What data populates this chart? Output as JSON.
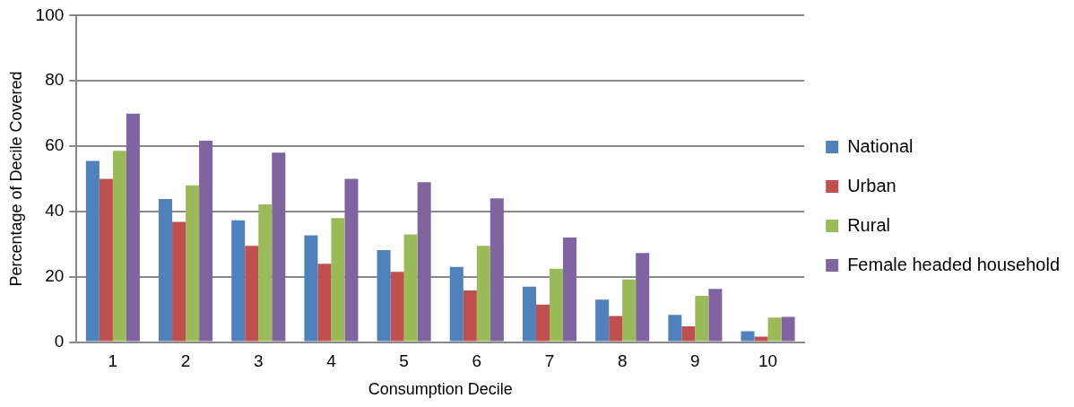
{
  "chart_data": {
    "type": "bar",
    "xlabel": "Consumption Decile",
    "ylabel": "Percentage of Decile Covered",
    "categories": [
      "1",
      "2",
      "3",
      "4",
      "5",
      "6",
      "7",
      "8",
      "9",
      "10"
    ],
    "series": [
      {
        "name": "National",
        "color": "#4f81bd",
        "values": [
          55.5,
          43.8,
          37.3,
          32.7,
          28.2,
          23,
          17,
          13,
          8.3,
          3.3
        ]
      },
      {
        "name": "Urban",
        "color": "#c0504d",
        "values": [
          50,
          36.8,
          29.5,
          24,
          21.5,
          15.8,
          11.5,
          8,
          4.8,
          1.7
        ]
      },
      {
        "name": "Rural",
        "color": "#9bbb59",
        "values": [
          58.6,
          48,
          42.2,
          38,
          33,
          29.5,
          22.5,
          19.2,
          14.2,
          7.5
        ]
      },
      {
        "name": "Female headed household",
        "color": "#8064a2",
        "values": [
          70,
          61.7,
          58,
          50,
          49,
          44,
          32,
          27.3,
          16.3,
          7.7
        ]
      }
    ],
    "ylim": [
      0,
      100
    ],
    "yticks": [
      0,
      20,
      40,
      60,
      80,
      100
    ],
    "grid": "y",
    "legend": "right"
  }
}
